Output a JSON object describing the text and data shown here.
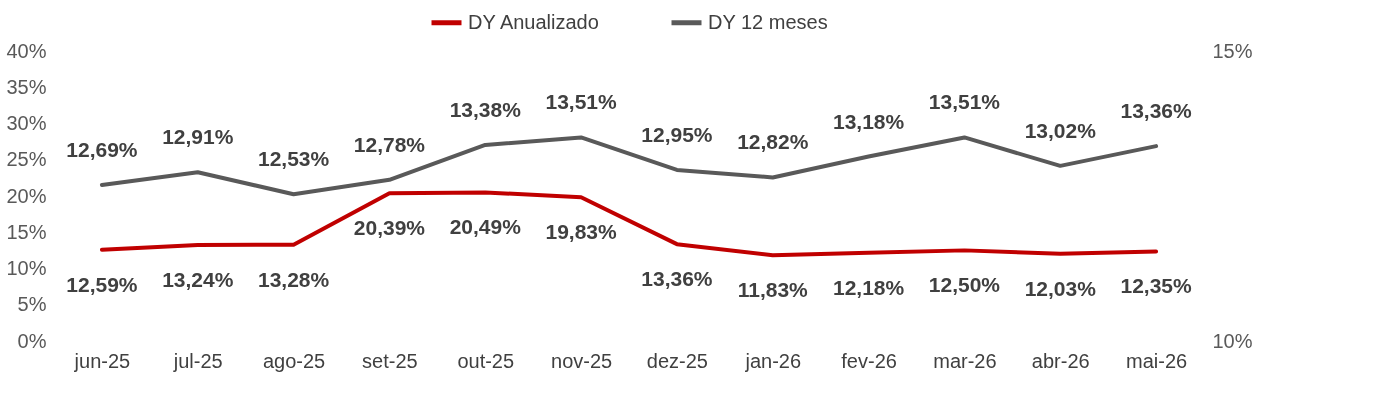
{
  "chart_data": {
    "type": "line",
    "categories": [
      "jun-25",
      "jul-25",
      "ago-25",
      "set-25",
      "out-25",
      "nov-25",
      "dez-25",
      "jan-26",
      "fev-26",
      "mar-26",
      "abr-26",
      "mai-26"
    ],
    "series": [
      {
        "name": "DY Anualizado",
        "color": "#c00000",
        "values": [
          12.59,
          13.24,
          13.28,
          20.39,
          20.49,
          19.83,
          13.36,
          11.83,
          12.18,
          12.5,
          12.03,
          12.35
        ],
        "value_labels": [
          "12,59%",
          "13,24%",
          "13,28%",
          "20,39%",
          "20,49%",
          "19,83%",
          "13,36%",
          "11,83%",
          "12,18%",
          "12,50%",
          "12,03%",
          "12,35%"
        ]
      },
      {
        "name": "DY 12 meses",
        "color": "#595959",
        "axis": "y2",
        "values": [
          12.69,
          12.91,
          12.53,
          12.78,
          13.38,
          13.51,
          12.95,
          12.82,
          13.18,
          13.51,
          13.02,
          13.36
        ],
        "value_labels": [
          "12,69%",
          "12,91%",
          "12,53%",
          "12,78%",
          "13,38%",
          "13,51%",
          "12,95%",
          "12,82%",
          "13,18%",
          "13,51%",
          "13,02%",
          "13,36%"
        ]
      }
    ],
    "ylim": [
      0,
      40
    ],
    "yticks": [
      {
        "value": 0,
        "label": "0%"
      },
      {
        "value": 5,
        "label": "5%"
      },
      {
        "value": 10,
        "label": "10%"
      },
      {
        "value": 15,
        "label": "15%"
      },
      {
        "value": 20,
        "label": "20%"
      },
      {
        "value": 25,
        "label": "25%"
      },
      {
        "value": 30,
        "label": "30%"
      },
      {
        "value": 35,
        "label": "35%"
      },
      {
        "value": 40,
        "label": "40%"
      }
    ],
    "y2lim": [
      10,
      15
    ],
    "y2ticks": [
      {
        "value": 10,
        "label": "10%"
      },
      {
        "value": 15,
        "label": "15%"
      }
    ],
    "grid": false,
    "legend": "top",
    "marker": "none",
    "line_style": "solid"
  }
}
